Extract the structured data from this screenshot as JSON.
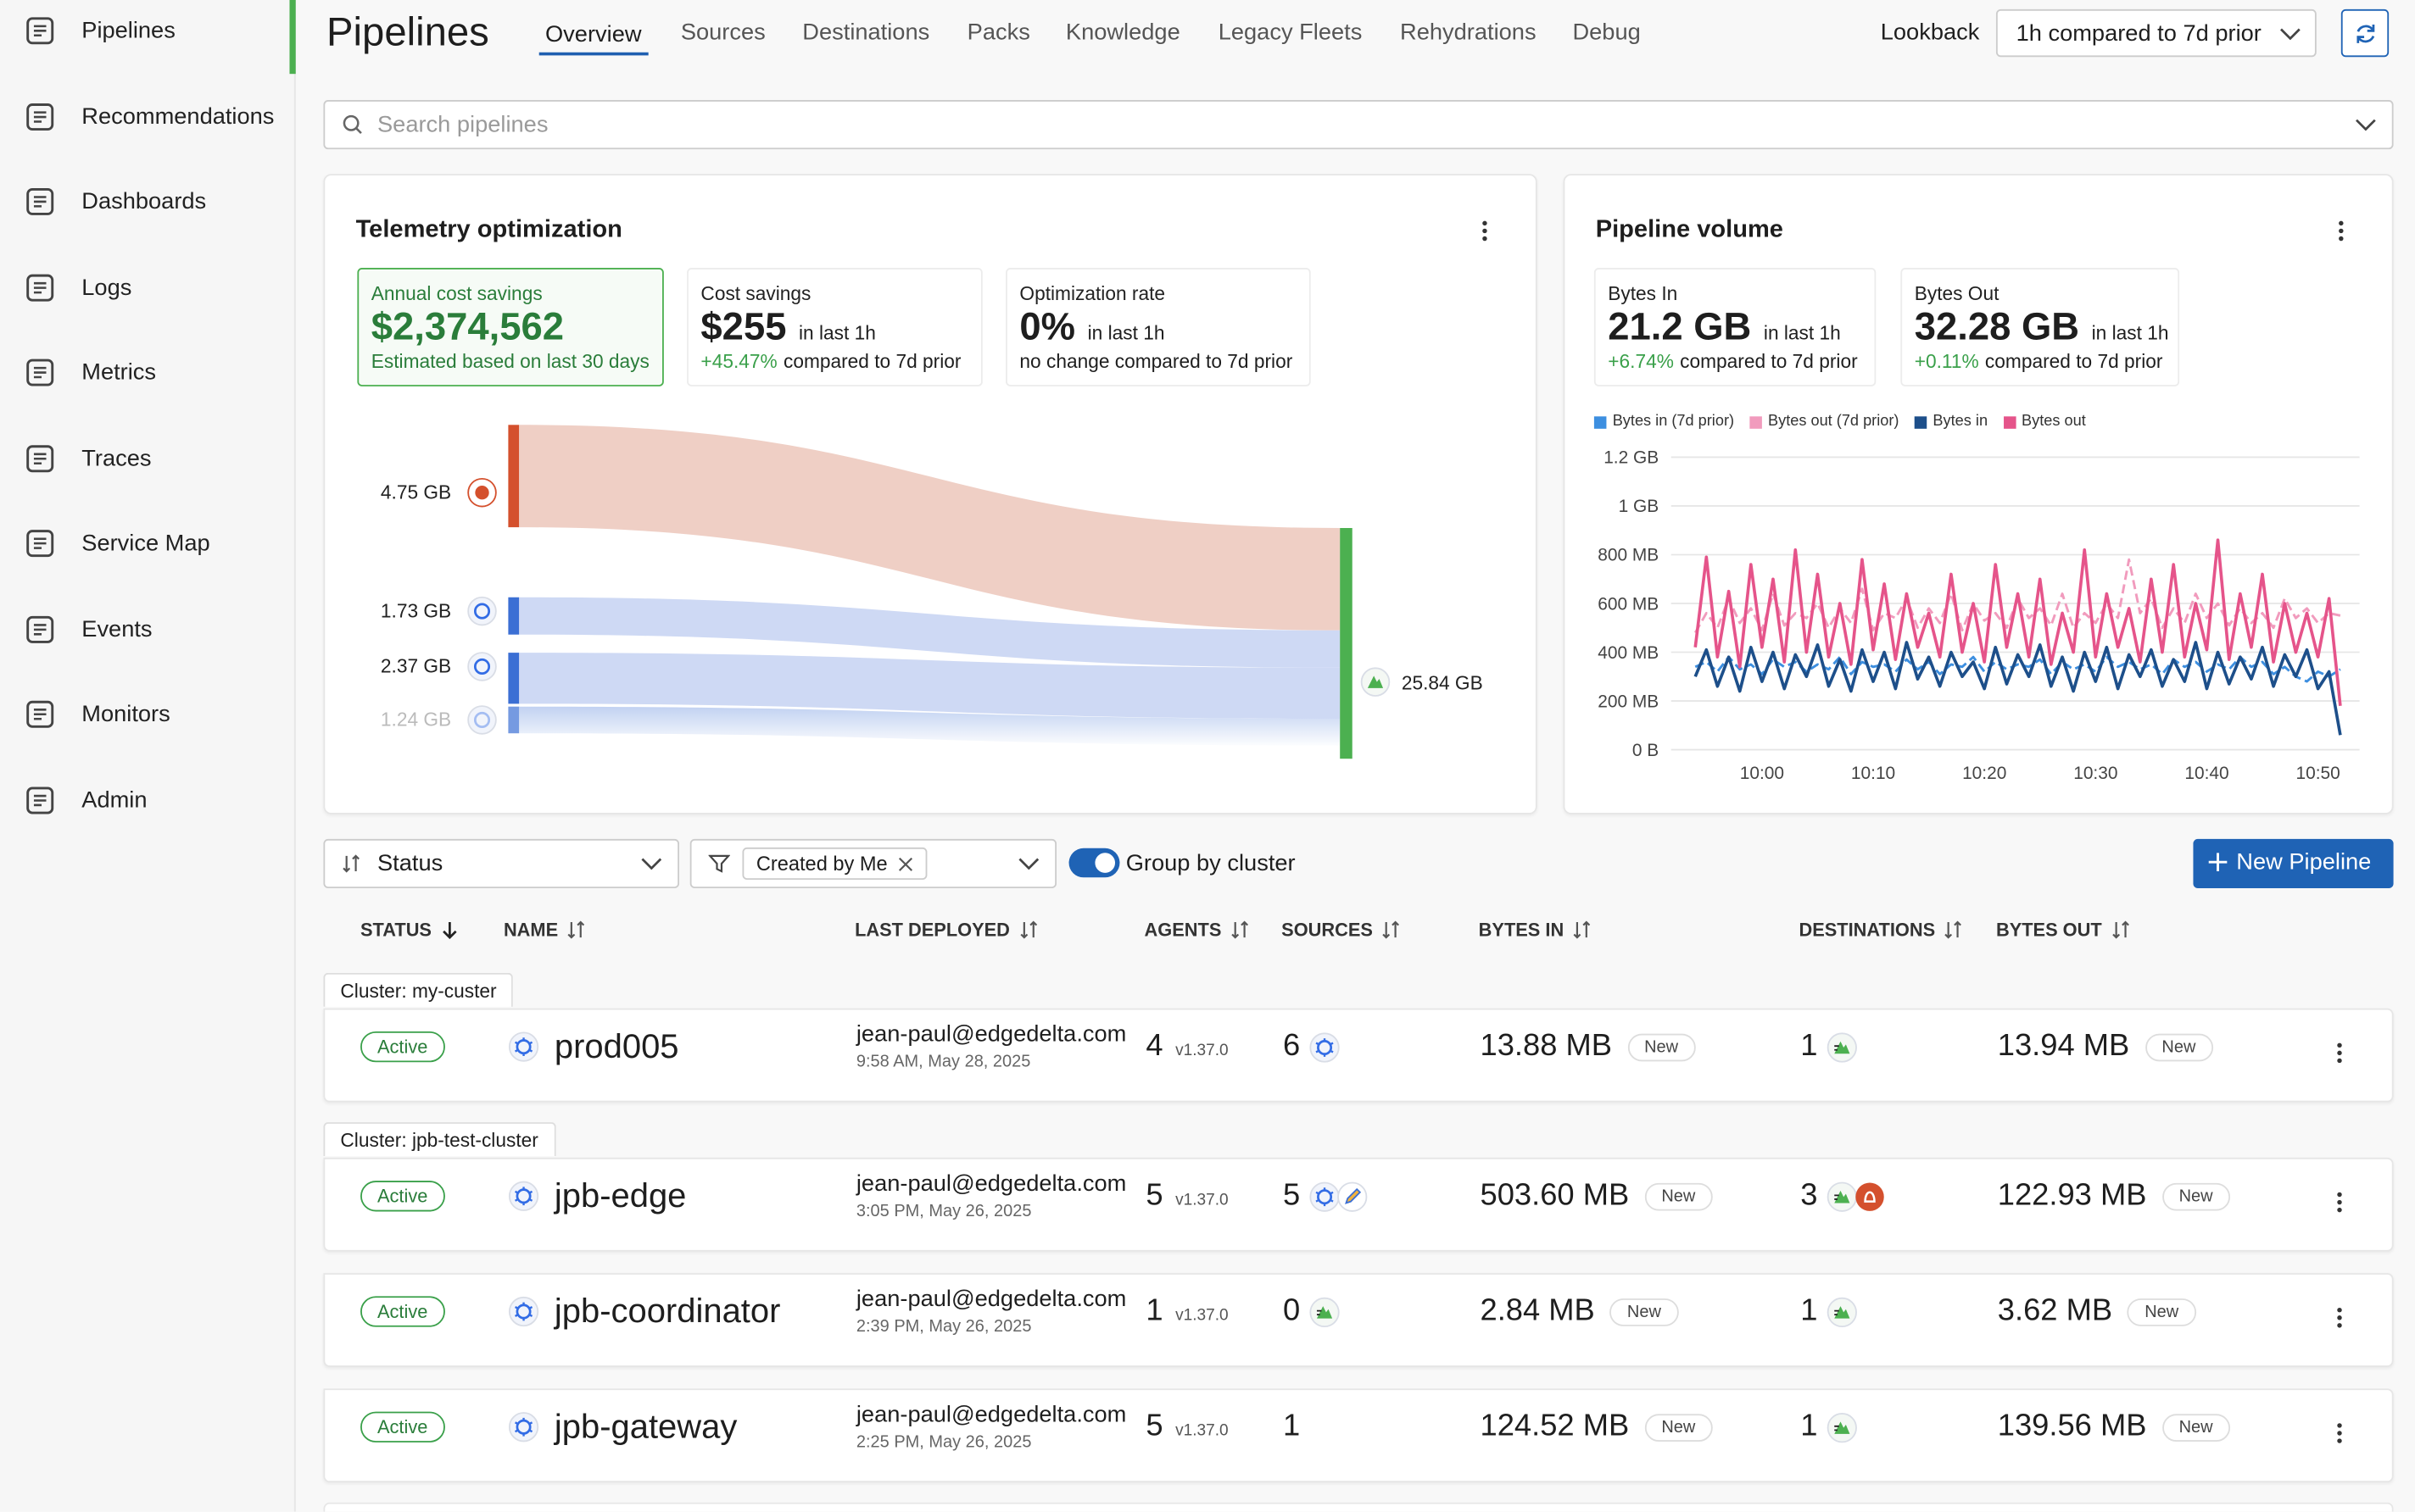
{
  "sidebar": {
    "items": [
      "Pipelines",
      "Recommendations",
      "Dashboards",
      "Logs",
      "Metrics",
      "Traces",
      "Service Map",
      "Events",
      "Monitors",
      "Admin"
    ]
  },
  "header": {
    "title": "Pipelines",
    "tabs": [
      "Overview",
      "Sources",
      "Destinations",
      "Packs",
      "Knowledge",
      "Legacy Fleets",
      "Rehydrations",
      "Debug"
    ],
    "lookback_label": "Lookback",
    "lookback_value": "1h compared to 7d prior"
  },
  "search_placeholder": "Search pipelines",
  "telemetry": {
    "title": "Telemetry optimization",
    "stats": [
      {
        "label": "Annual cost savings",
        "value": "$2,374,562",
        "note": "Estimated based on last 30 days"
      },
      {
        "label": "Cost savings",
        "value": "$255",
        "period": "in last 1h",
        "change": "+45.47%",
        "compare": "compared to 7d prior"
      },
      {
        "label": "Optimization rate",
        "value": "0%",
        "period": "in last 1h",
        "compare": "no change compared to 7d prior"
      }
    ]
  },
  "volume": {
    "title": "Pipeline volume",
    "stats": [
      {
        "label": "Bytes In",
        "value": "21.2 GB",
        "period": "in last 1h",
        "change": "+6.74%",
        "compare": "compared to 7d prior"
      },
      {
        "label": "Bytes Out",
        "value": "32.28 GB",
        "period": "in last 1h",
        "change": "+0.11%",
        "compare": "compared to 7d prior"
      }
    ]
  },
  "chart_data": [
    {
      "type": "sankey",
      "values": [
        4.75,
        1.73,
        2.37,
        1.24
      ],
      "value_labels": [
        "4.75 GB",
        "1.73 GB",
        "2.37 GB",
        "1.24 GB"
      ],
      "colors": [
        "#d4502d",
        "#3b6fd4",
        "#3b6fd4",
        "#3b6fd4"
      ],
      "target_value": 25.84,
      "target_label": "25.84 GB",
      "target_color": "#4cb050"
    },
    {
      "type": "line",
      "grid": true,
      "categories": [
        null,
        null,
        null,
        null,
        null,
        null,
        "10:00",
        null,
        null,
        null,
        null,
        null,
        null,
        null,
        null,
        null,
        "10:10",
        null,
        null,
        null,
        null,
        null,
        null,
        null,
        null,
        null,
        "10:20",
        null,
        null,
        null,
        null,
        null,
        null,
        null,
        null,
        null,
        "10:30",
        null,
        null,
        null,
        null,
        null,
        null,
        null,
        null,
        null,
        "10:40",
        null,
        null,
        null,
        null,
        null,
        null,
        null,
        null,
        null,
        "10:50",
        null,
        null
      ],
      "ylim": [
        0,
        1200
      ],
      "yticks": [
        {
          "value": 0,
          "label": "0 B"
        },
        {
          "value": 200,
          "label": "200 MB"
        },
        {
          "value": 400,
          "label": "400 MB"
        },
        {
          "value": 600,
          "label": "600 MB"
        },
        {
          "value": 800,
          "label": "800 MB"
        },
        {
          "value": 1000,
          "label": "1 GB"
        },
        {
          "value": 1200,
          "label": "1.2 GB"
        }
      ],
      "series": [
        {
          "name": "Bytes in (7d prior)",
          "color": "#3d8fe0",
          "dashed": true,
          "values": [
            340,
            360,
            320,
            380,
            330,
            350,
            310,
            370,
            340,
            360,
            320,
            350,
            330,
            380,
            310,
            360,
            340,
            350,
            320,
            370,
            330,
            360,
            310,
            350,
            340,
            380,
            320,
            360,
            330,
            350,
            340,
            370,
            310,
            360,
            330,
            350,
            320,
            380,
            340,
            360,
            330,
            350,
            310,
            370,
            340,
            360,
            320,
            350,
            330,
            380,
            340,
            360,
            310,
            340,
            300,
            280,
            320,
            300,
            330
          ]
        },
        {
          "name": "Bytes out (7d prior)",
          "color": "#f19bbd",
          "dashed": true,
          "values": [
            480,
            560,
            500,
            620,
            520,
            580,
            490,
            640,
            510,
            560,
            540,
            600,
            500,
            580,
            520,
            660,
            490,
            560,
            540,
            620,
            500,
            580,
            520,
            640,
            490,
            600,
            530,
            560,
            500,
            620,
            540,
            580,
            510,
            640,
            500,
            560,
            520,
            600,
            540,
            780,
            560,
            620,
            500,
            580,
            520,
            640,
            540,
            600,
            510,
            580,
            520,
            560,
            500,
            620,
            540,
            580,
            520,
            560,
            550
          ]
        },
        {
          "name": "Bytes in",
          "color": "#1d4f8a",
          "dashed": false,
          "values": [
            300,
            410,
            260,
            380,
            240,
            420,
            280,
            400,
            250,
            390,
            300,
            430,
            260,
            370,
            240,
            410,
            280,
            400,
            250,
            440,
            290,
            380,
            260,
            400,
            300,
            360,
            250,
            420,
            270,
            390,
            300,
            430,
            260,
            380,
            240,
            400,
            280,
            420,
            250,
            390,
            300,
            410,
            260,
            370,
            280,
            440,
            250,
            400,
            270,
            380,
            290,
            420,
            260,
            390,
            300,
            410,
            250,
            320,
            60
          ]
        },
        {
          "name": "Bytes out",
          "color": "#e5548a",
          "dashed": false,
          "values": [
            420,
            790,
            380,
            650,
            340,
            760,
            420,
            700,
            360,
            820,
            400,
            720,
            380,
            600,
            350,
            780,
            410,
            680,
            370,
            640,
            420,
            560,
            380,
            720,
            400,
            600,
            360,
            760,
            420,
            640,
            380,
            700,
            350,
            560,
            400,
            820,
            380,
            640,
            420,
            580,
            360,
            700,
            400,
            760,
            380,
            600,
            410,
            860,
            370,
            640,
            420,
            720,
            360,
            600,
            400,
            560,
            380,
            620,
            180
          ]
        }
      ]
    }
  ],
  "toolbar": {
    "sort": "Status",
    "filter": "Created by Me",
    "toggle": "Group by cluster",
    "button": "New Pipeline"
  },
  "table": {
    "columns": [
      "STATUS",
      "NAME",
      "LAST DEPLOYED",
      "AGENTS",
      "SOURCES",
      "BYTES IN",
      "DESTINATIONS",
      "BYTES OUT"
    ],
    "groups": [
      {
        "cluster": "Cluster: my-custer",
        "rows": [
          {
            "status": "Active",
            "name": "prod005",
            "deployer": "jean-paul@edgedelta.com",
            "deployed": "9:58 AM, May 28, 2025",
            "agents": 4,
            "version": "v1.37.0",
            "sources": 6,
            "bytes_in": "13.88 MB",
            "bytes_in_badge": "New",
            "destinations": 1,
            "bytes_out": "13.94 MB",
            "bytes_out_badge": "New"
          }
        ]
      },
      {
        "cluster": "Cluster: jpb-test-cluster",
        "rows": [
          {
            "status": "Active",
            "name": "jpb-edge",
            "deployer": "jean-paul@edgedelta.com",
            "deployed": "3:05 PM, May 26, 2025",
            "agents": 5,
            "version": "v1.37.0",
            "sources": 5,
            "bytes_in": "503.60 MB",
            "bytes_in_badge": "New",
            "destinations": 3,
            "bytes_out": "122.93 MB",
            "bytes_out_badge": "New"
          },
          {
            "status": "Active",
            "name": "jpb-coordinator",
            "deployer": "jean-paul@edgedelta.com",
            "deployed": "2:39 PM, May 26, 2025",
            "agents": 1,
            "version": "v1.37.0",
            "sources": 0,
            "bytes_in": "2.84 MB",
            "bytes_in_badge": "New",
            "destinations": 1,
            "bytes_out": "3.62 MB",
            "bytes_out_badge": "New"
          },
          {
            "status": "Active",
            "name": "jpb-gateway",
            "deployer": "jean-paul@edgedelta.com",
            "deployed": "2:25 PM, May 26, 2025",
            "agents": 5,
            "version": "v1.37.0",
            "sources": 1,
            "bytes_in": "124.52 MB",
            "bytes_in_badge": "New",
            "destinations": 1,
            "bytes_out": "139.56 MB",
            "bytes_out_badge": "New"
          }
        ]
      }
    ]
  }
}
